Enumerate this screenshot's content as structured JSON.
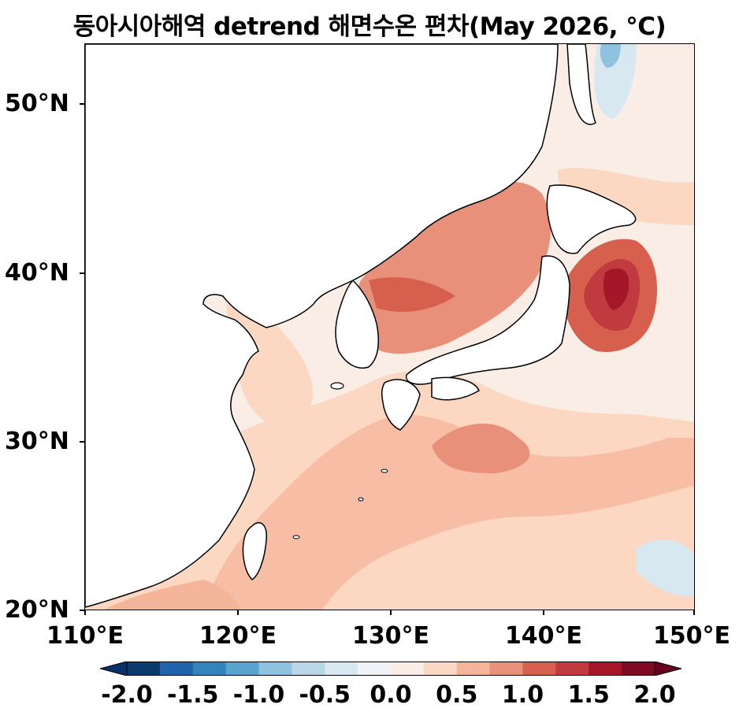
{
  "title": "동아시아해역 detrend 해면수온 편차(May 2026, °C)",
  "map": {
    "region": "East Asian seas",
    "lon_range": [
      110,
      150
    ],
    "lat_range": [
      20,
      53.5
    ],
    "lat_ticks": [
      "20°N",
      "30°N",
      "40°N",
      "50°N"
    ],
    "lon_ticks": [
      "110°E",
      "120°E",
      "130°E",
      "140°E",
      "150°E"
    ],
    "land_color": "#ffffff",
    "coastline_color": "#000000"
  },
  "colorbar": {
    "labels": [
      "-2.0",
      "-1.5",
      "-1.0",
      "-0.5",
      "0.0",
      "0.5",
      "1.0",
      "1.5",
      "2.0"
    ],
    "colors": [
      "#0b3a6e",
      "#1f64ad",
      "#3384bc",
      "#5aa3cf",
      "#8fc2de",
      "#b7d7e8",
      "#d8e8f1",
      "#edf3f6",
      "#f9ede5",
      "#fcd7c2",
      "#f5b59b",
      "#e8907a",
      "#d6604d",
      "#c03a3f",
      "#a51629",
      "#7f0a24"
    ],
    "extend": "both",
    "units": "°C"
  }
}
